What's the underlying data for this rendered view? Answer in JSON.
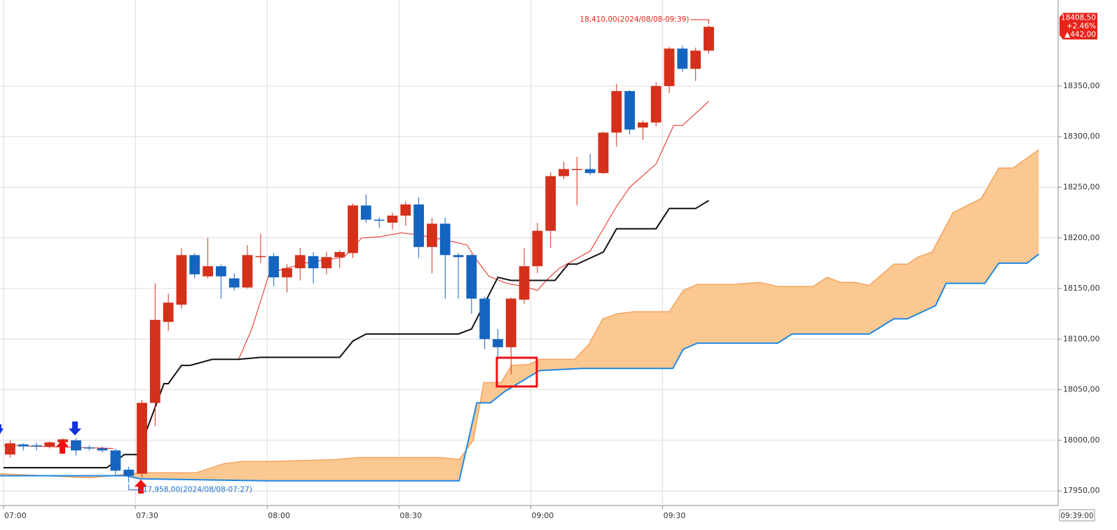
{
  "chart_data": {
    "type": "candlestick",
    "x": [
      0,
      3,
      6,
      9,
      12,
      15,
      18,
      21,
      24,
      27,
      30,
      33,
      36,
      39,
      42,
      45,
      48,
      51,
      54,
      57,
      60,
      63,
      66,
      69,
      72,
      75,
      78,
      81,
      84,
      87,
      90,
      93,
      96,
      99,
      102,
      105,
      108,
      111,
      114,
      117,
      120,
      123,
      126,
      129,
      132,
      135,
      138,
      141,
      144,
      147,
      150,
      153,
      156,
      159
    ],
    "open": [
      17986,
      17996,
      17995,
      17994,
      17998,
      18000,
      17993,
      17992,
      17990,
      17971,
      17967,
      18037,
      18117,
      18134,
      18183,
      18162,
      18172,
      18160,
      18151,
      18182,
      18182,
      18161,
      18170,
      18182,
      18170,
      18181,
      18185,
      18232,
      18218,
      18215,
      18222,
      18233,
      18191,
      18214,
      18183,
      18183,
      18140,
      18100,
      18092,
      18139,
      18172,
      18207,
      18261,
      18267,
      18268,
      18264,
      18304,
      18345,
      18309,
      18314,
      18350,
      18387,
      18367,
      18385
    ],
    "high": [
      18000,
      17997,
      17998,
      17999,
      18002,
      18002,
      17995,
      17994,
      17992,
      17974,
      18040,
      18155,
      18145,
      18190,
      18185,
      18200,
      18174,
      18165,
      18193,
      18204,
      18185,
      18174,
      18190,
      18186,
      18186,
      18188,
      18234,
      18243,
      18220,
      18225,
      18236,
      18240,
      18220,
      18220,
      18185,
      18184,
      18142,
      18110,
      18141,
      18190,
      18215,
      18265,
      18275,
      18280,
      18283,
      18305,
      18352,
      18346,
      18316,
      18354,
      18389,
      18390,
      18388,
      18410
    ],
    "low": [
      17983,
      17990,
      17990,
      17992,
      17996,
      17985,
      17990,
      17988,
      17966,
      17958,
      17963,
      18014,
      18108,
      18130,
      18160,
      18160,
      18140,
      18148,
      18150,
      18175,
      18152,
      18146,
      18158,
      18155,
      18164,
      18170,
      18180,
      18215,
      18210,
      18208,
      18212,
      18180,
      18165,
      18140,
      18140,
      18125,
      18090,
      18080,
      18065,
      18135,
      18165,
      18190,
      18258,
      18232,
      18262,
      18263,
      18290,
      18302,
      18297,
      18310,
      18343,
      18364,
      18355,
      18382
    ],
    "close": [
      17997,
      17994,
      17994,
      17998,
      18001,
      17990,
      17992,
      17990,
      17970,
      17965,
      18037,
      18119,
      18136,
      18183,
      18164,
      18172,
      18162,
      18151,
      18183,
      18182,
      18161,
      18170,
      18183,
      18170,
      18181,
      18186,
      18232,
      18218,
      18217,
      18222,
      18233,
      18191,
      18214,
      18183,
      18181,
      18140,
      18100,
      18092,
      18140,
      18172,
      18207,
      18261,
      18268,
      18268,
      18264,
      18304,
      18345,
      18307,
      18314,
      18350,
      18387,
      18367,
      18385,
      18408.5
    ],
    "up_color": "#d4301a",
    "down_color": "#1565c0",
    "lines": [
      {
        "color": "#e8231a",
        "width": 1,
        "x": [
          0,
          25,
          27,
          53.5,
          56.5,
          60.5,
          63.5,
          69.5,
          77.5,
          81.5,
          85.5,
          90.5,
          94.5,
          102.5,
          105.5,
          107.5,
          110.5,
          114.5,
          118.5,
          121.5,
          123.5,
          126.5,
          133.5,
          139.5,
          142.5,
          148.5,
          152.5,
          154.5,
          160.5
        ],
        "values": [
          17995,
          17992,
          null,
          18080,
          18110,
          18165,
          18169,
          18176,
          18181,
          18200,
          18201,
          18205,
          18203,
          18196,
          18193,
          18179,
          18162,
          18155,
          18152,
          18148,
          18158,
          18170,
          18187,
          18231,
          18250,
          18273,
          18311,
          18311,
          18335
        ]
      },
      {
        "color": "#111111",
        "width": 2,
        "x": [
          0,
          23.5,
          27.5,
          30.5,
          36.5,
          37.5,
          40.5,
          42.5,
          47.5,
          53.5,
          58.5,
          76.5,
          79.5,
          82.5,
          103.5,
          106.5,
          112.5,
          115.5,
          125.5,
          128.5,
          130.5,
          136.5,
          139.5,
          148.5,
          151.5,
          157.5,
          160.5
        ],
        "values": [
          17973,
          17973,
          17986,
          17986,
          18056,
          18056,
          18074,
          18074,
          18080,
          18080,
          18082,
          18082,
          18098,
          18105,
          18105,
          18110,
          18161,
          18158,
          18158,
          18174,
          18174,
          18186,
          18209,
          18209,
          18229,
          18229,
          18237
        ]
      }
    ],
    "cloud": {
      "color": "#fcc891",
      "span_a": {
        "color": "#f4a460",
        "x": [
          -0.8,
          19.9,
          31.1,
          43.9,
          50.2,
          54.2,
          59.8,
          75.8,
          80.5,
          99.7,
          103.7,
          106.9,
          109.3,
          113.2,
          115.6,
          119.6,
          122,
          130,
          133.2,
          136.4,
          139.6,
          143.5,
          151.5,
          154.7,
          157.9,
          165.9,
          172.2,
          176.2,
          184.2,
          187.4,
          190.6,
          193.8,
          197,
          200.2,
          202.6,
          205.7,
          208.1,
          211.3,
          216.1,
          222.5,
          226.5,
          229.7,
          235.6
        ],
        "values": [
          17967,
          17963,
          17968,
          17968,
          17977,
          17979,
          17979,
          17981,
          17983,
          17983,
          17981,
          18000,
          18057,
          18057,
          18074,
          18075,
          18080,
          18080,
          18095,
          18120,
          18125,
          18127,
          18127,
          18148,
          18154,
          18154,
          18156,
          18152,
          18152,
          18161,
          18156,
          18156,
          18153,
          18165,
          18174,
          18174,
          18181,
          18186,
          18225,
          18239,
          18269,
          18269,
          18287
        ]
      },
      "span_b": {
        "color": "#1e88e5",
        "x": [
          -0.8,
          27.9,
          31.1,
          59.8,
          103.7,
          107.7,
          110.8,
          114,
          122,
          131.6,
          152.3,
          154.7,
          157.9,
          176.2,
          179.4,
          197,
          202.6,
          205.7,
          212.1,
          214.5,
          223.3,
          226.5,
          232.9,
          235.6
        ],
        "values": [
          17965,
          17965,
          17962,
          17960,
          17960,
          18037,
          18037,
          18048,
          18069,
          18071,
          18071,
          18090,
          18096,
          18096,
          18105,
          18105,
          18120,
          18120,
          18133,
          18155,
          18155,
          18175,
          18175,
          18184
        ]
      }
    },
    "xlim": [
      -0.8,
      240
    ],
    "ylim": [
      17937,
      18435
    ],
    "xticks": [
      {
        "value": 0,
        "label": "07:00"
      },
      {
        "value": 30,
        "label": "07:30"
      },
      {
        "value": 60,
        "label": "08:00"
      },
      {
        "value": 90,
        "label": "08:30"
      },
      {
        "value": 120,
        "label": "09:00"
      },
      {
        "value": 150,
        "label": "09:30"
      }
    ],
    "yticks": [
      {
        "value": 17950,
        "label": "17950,00"
      },
      {
        "value": 18000,
        "label": "18000,00"
      },
      {
        "value": 18050,
        "label": "18050,00"
      },
      {
        "value": 18100,
        "label": "18100,00"
      },
      {
        "value": 18150,
        "label": "18150,00"
      },
      {
        "value": 18200,
        "label": "18200,00"
      },
      {
        "value": 18250,
        "label": "18250,00"
      },
      {
        "value": 18300,
        "label": "18300,00"
      },
      {
        "value": 18350,
        "label": "18350,00"
      }
    ],
    "grid": true,
    "annotations": [
      {
        "text": "18,410,00(2024/08/08-09:39)",
        "x": 159,
        "y": 18410,
        "color": "#e8231a"
      },
      {
        "text": "17,958,00(2024/08/08-07:27)",
        "x": 27,
        "y": 17958,
        "color": "#1e6fd0"
      }
    ],
    "price_label": {
      "value": 18408.5,
      "lines": [
        "18408,50",
        "+2.46%",
        "▲442,00"
      ],
      "color": "#e8231a"
    },
    "cursor_time": "09:39:00"
  }
}
